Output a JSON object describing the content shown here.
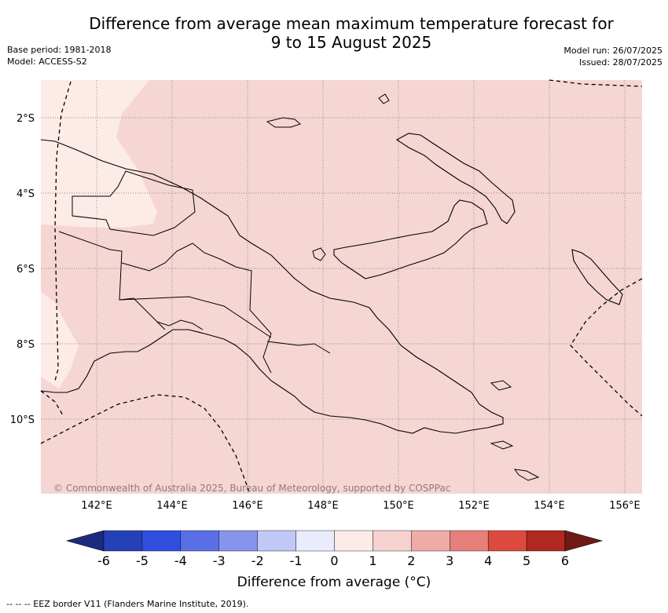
{
  "title": {
    "line1": "Difference from average mean maximum temperature forecast for",
    "line2": "9 to 15 August 2025"
  },
  "meta": {
    "base_period": "Base period: 1981-2018",
    "model": "Model: ACCESS-S2",
    "model_run": "Model run: 26/07/2025",
    "issued": "Issued: 28/07/2025"
  },
  "map": {
    "region": "Papua New Guinea",
    "background_color": "#f5d6d3",
    "light_region_color": "#fcebe7",
    "lat_labels": [
      "2°S",
      "4°S",
      "6°S",
      "8°S",
      "10°S"
    ],
    "lon_labels": [
      "142°E",
      "144°E",
      "146°E",
      "148°E",
      "150°E",
      "152°E",
      "154°E",
      "156°E"
    ],
    "copyright": "© Commonwealth of Australia 2025, Bureau of Meteorology, supported by COSPPac"
  },
  "colorbar": {
    "label": "Difference from average (°C)",
    "ticks": [
      "-6",
      "-5",
      "-4",
      "-3",
      "-2",
      "-1",
      "0",
      "1",
      "2",
      "3",
      "4",
      "5",
      "6"
    ],
    "colors": [
      "#1b2c80",
      "#2541b8",
      "#2f4fe0",
      "#5a6fe6",
      "#8794ec",
      "#c1c8f5",
      "#e8ecfb",
      "#fcebe7",
      "#f5d2cf",
      "#efaba6",
      "#e5807a",
      "#dc4a3f",
      "#b0281f",
      "#6f1a17"
    ]
  },
  "footnote": "-- -- -- EEZ border V11 (Flanders Marine Institute, 2019)."
}
